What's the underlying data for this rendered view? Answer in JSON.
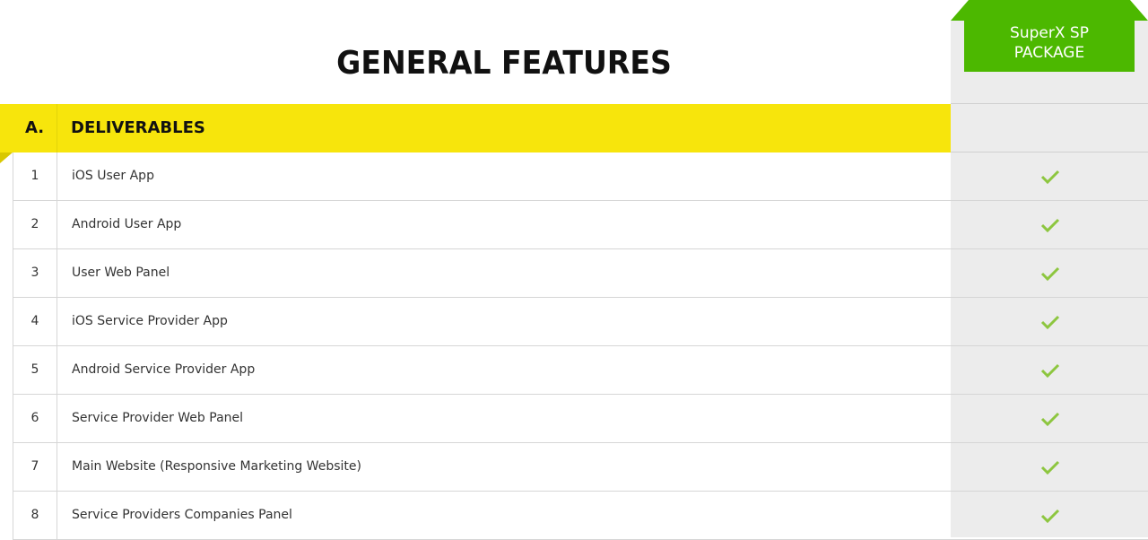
{
  "header": {
    "title": "GENERAL FEATURES",
    "package": {
      "line1": "SuperX SP",
      "line2": "PACKAGE"
    }
  },
  "section": {
    "letter": "A.",
    "title": "DELIVERABLES"
  },
  "colors": {
    "band": "#f7e50c",
    "package": "#4cb800",
    "check": "#8dc63f",
    "column": "#ececec"
  },
  "rows": [
    {
      "num": "1",
      "label": "iOS User App",
      "included": true
    },
    {
      "num": "2",
      "label": "Android User App",
      "included": true
    },
    {
      "num": "3",
      "label": "User Web Panel",
      "included": true
    },
    {
      "num": "4",
      "label": "iOS Service Provider App",
      "included": true
    },
    {
      "num": "5",
      "label": "Android Service Provider App",
      "included": true
    },
    {
      "num": "6",
      "label": "Service Provider Web Panel",
      "included": true
    },
    {
      "num": "7",
      "label": "Main Website (Responsive Marketing Website)",
      "included": true
    },
    {
      "num": "8",
      "label": "Service Providers Companies Panel",
      "included": true
    }
  ]
}
